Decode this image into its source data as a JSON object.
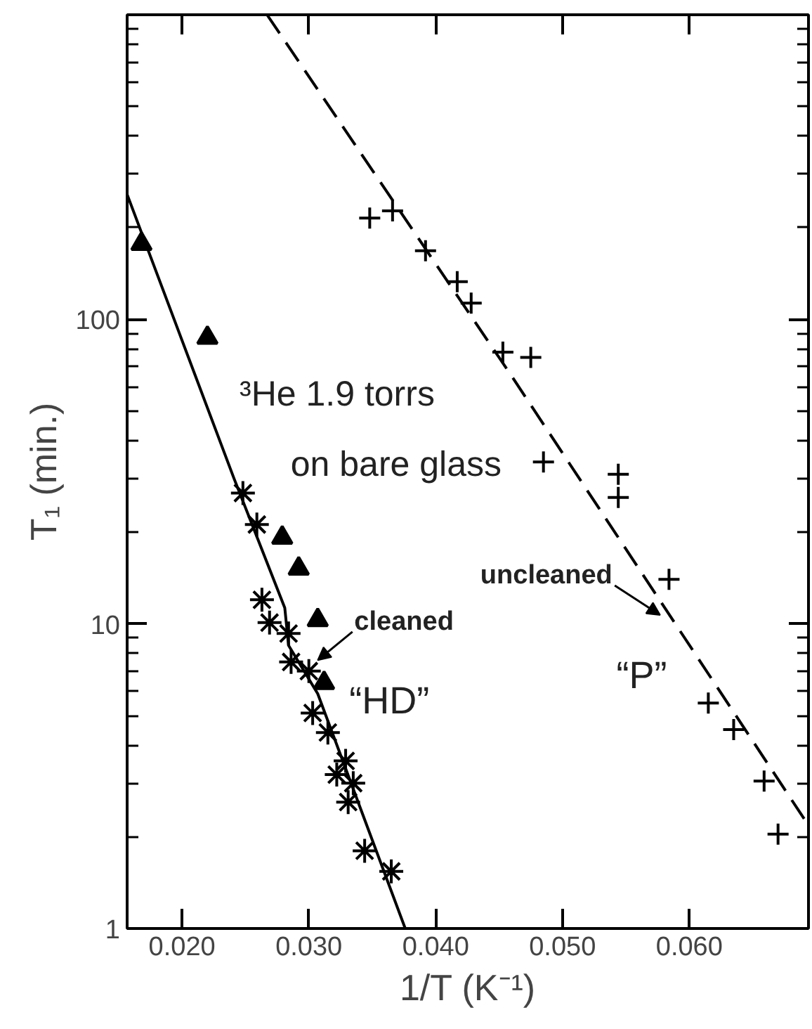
{
  "chart_data": {
    "type": "scatter",
    "xlabel": "1/T (K⁻¹)",
    "ylabel": "T₁ (min.)",
    "log": "y",
    "xlim": [
      0.01567,
      0.0694
    ],
    "ylim": [
      1,
      1000
    ],
    "xticks": [
      {
        "value": 0.02,
        "label": "0.020"
      },
      {
        "value": 0.03,
        "label": "0.030"
      },
      {
        "value": 0.04,
        "label": "0.040"
      },
      {
        "value": 0.05,
        "label": "0.050"
      },
      {
        "value": 0.06,
        "label": "0.060"
      }
    ],
    "yticks": [
      1,
      {
        "value": 2,
        "label": null
      },
      {
        "value": 3,
        "label": null
      },
      {
        "value": 4,
        "label": null
      },
      {
        "value": 5,
        "label": null
      },
      {
        "value": 6,
        "label": null
      },
      {
        "value": 7,
        "label": null
      },
      {
        "value": 8,
        "label": null
      },
      {
        "value": 9,
        "label": null
      },
      10,
      {
        "value": 20,
        "label": null
      },
      {
        "value": 30,
        "label": null
      },
      {
        "value": 40,
        "label": null
      },
      {
        "value": 50,
        "label": null
      },
      {
        "value": 60,
        "label": null
      },
      {
        "value": 70,
        "label": null
      },
      {
        "value": 80,
        "label": null
      },
      {
        "value": 90,
        "label": null
      },
      100,
      {
        "value": 200,
        "label": null
      },
      {
        "value": 300,
        "label": null
      },
      {
        "value": 400,
        "label": null
      },
      {
        "value": 500,
        "label": null
      },
      {
        "value": 600,
        "label": null
      },
      {
        "value": 700,
        "label": null
      },
      {
        "value": 800,
        "label": null
      },
      {
        "value": 900,
        "label": null
      },
      {
        "value": 1000,
        "label": null
      }
    ],
    "grid": false,
    "series": [
      {
        "marker": "triangle",
        "color": "#000000",
        "x": [
          0.0168,
          0.022,
          0.0279,
          0.0292,
          0.0307,
          0.0312
        ],
        "values": [
          177,
          87,
          19.2,
          15.2,
          10.3,
          6.4
        ]
      },
      {
        "marker": "cross",
        "color": "#000000",
        "x": [
          0.0248,
          0.0259,
          0.0263,
          0.0269,
          0.0284,
          0.0286,
          0.03,
          0.0303,
          0.0315,
          0.0329,
          0.0322,
          0.0335,
          0.0331,
          0.0344,
          0.0365
        ],
        "values": [
          26.9,
          21.2,
          12.0,
          10.1,
          9.3,
          7.5,
          7.0,
          5.1,
          4.4,
          3.55,
          3.2,
          3.0,
          2.6,
          1.8,
          1.54
        ]
      },
      {
        "marker": "cross",
        "color": "#000000",
        "x": [
          0.0348,
          0.0366,
          0.0392,
          0.0417,
          0.0428,
          0.0453,
          0.0475,
          0.0485,
          0.0544,
          0.0544,
          0.0584,
          0.0615,
          0.0635,
          0.0659,
          0.067
        ],
        "values": [
          215,
          227,
          168,
          133,
          113,
          78,
          75,
          34,
          31,
          26,
          14,
          5.5,
          4.5,
          3.05,
          2.04
        ]
      },
      {
        "type": "line",
        "marker": "none",
        "line_style": "solid",
        "color": "#000000",
        "x": [
          0.01567,
          0.0241,
          0.0281,
          0.0284,
          0.0307,
          0.0376
        ],
        "values": [
          257,
          30,
          11.3,
          8.5,
          5.9,
          1.0
        ]
      },
      {
        "type": "line",
        "marker": "none",
        "line_style": "dashed",
        "color": "#000000",
        "x": [
          0.0267,
          0.0459,
          0.0694
        ],
        "values": [
          1000,
          66,
          2.18
        ]
      }
    ],
    "annotations": [
      "³He  1.9 torrs",
      "on bare glass",
      {
        "text": "cleaned",
        "x": 0.0307,
        "y": 7.6
      },
      "“HD”",
      {
        "text": "uncleaned",
        "x": 0.0577,
        "y": 10.7
      },
      "“P”"
    ]
  }
}
